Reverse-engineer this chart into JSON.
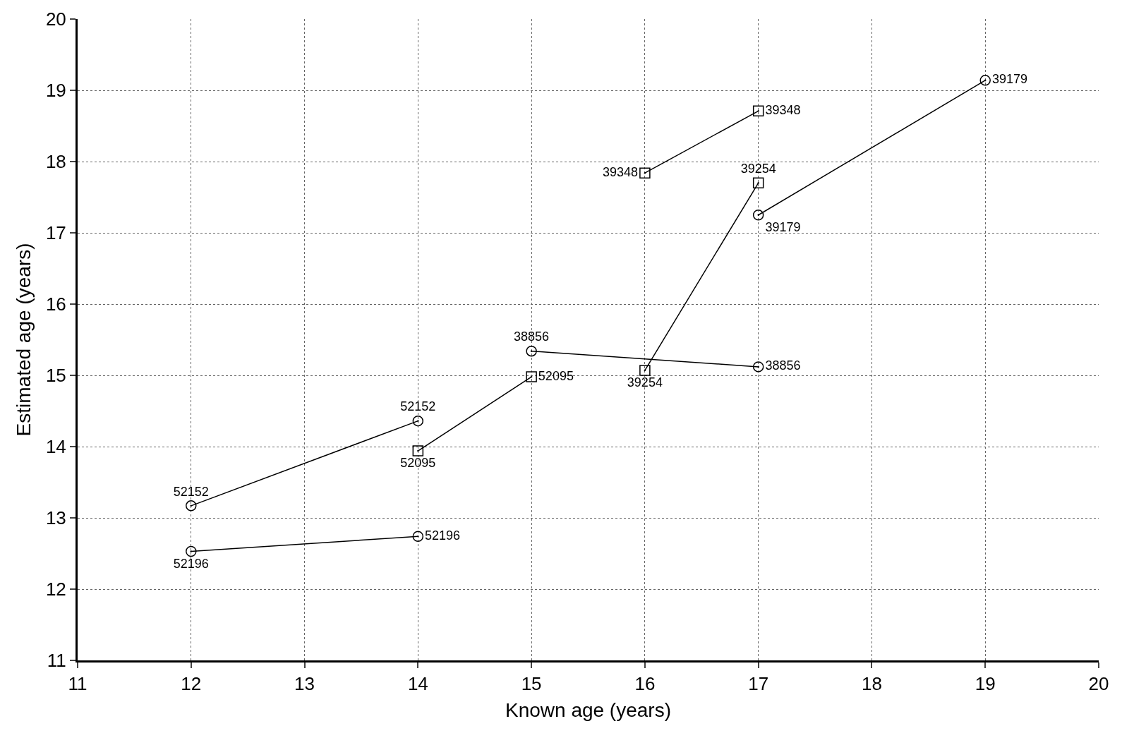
{
  "chart_data": {
    "type": "line",
    "xlabel": "Known age (years)",
    "ylabel": "Estimated age (years)",
    "xlim": [
      11,
      20
    ],
    "xticks": [
      11,
      12,
      13,
      14,
      15,
      16,
      17,
      18,
      19,
      20
    ],
    "ylim": [
      11,
      20
    ],
    "yticks": [
      11,
      12,
      13,
      14,
      15,
      16,
      17,
      18,
      19,
      20
    ],
    "grid": true,
    "legend": false,
    "line_style": "solid",
    "series": [
      {
        "name": "52196",
        "color": "#000000",
        "marker": "circle",
        "x": [
          12,
          14
        ],
        "values": [
          12.53,
          12.74
        ]
      },
      {
        "name": "52152",
        "color": "#000000",
        "marker": "circle",
        "x": [
          12,
          14
        ],
        "values": [
          13.17,
          14.36
        ]
      },
      {
        "name": "52095",
        "color": "#000000",
        "marker": "square",
        "x": [
          14,
          15
        ],
        "values": [
          13.94,
          14.98
        ]
      },
      {
        "name": "38856",
        "color": "#000000",
        "marker": "circle",
        "x": [
          15,
          17
        ],
        "values": [
          15.34,
          15.12
        ]
      },
      {
        "name": "39254",
        "color": "#000000",
        "marker": "square",
        "x": [
          16,
          17
        ],
        "values": [
          15.07,
          17.7
        ]
      },
      {
        "name": "39348",
        "color": "#000000",
        "marker": "square",
        "x": [
          16,
          17
        ],
        "values": [
          17.84,
          18.71
        ]
      },
      {
        "name": "39179",
        "color": "#000000",
        "marker": "circle",
        "x": [
          17,
          19
        ],
        "values": [
          17.25,
          19.14
        ]
      }
    ]
  }
}
